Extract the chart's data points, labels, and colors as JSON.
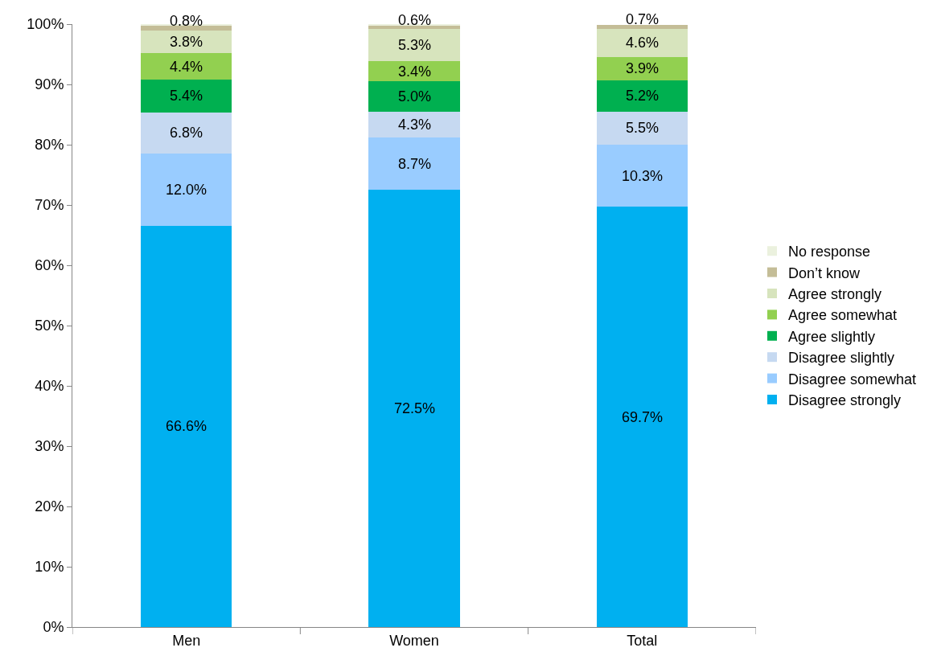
{
  "chart_data": {
    "type": "bar",
    "stacked": true,
    "categories": [
      "Men",
      "Women",
      "Total"
    ],
    "ylim": [
      0,
      100
    ],
    "yticks": [
      {
        "value": 0,
        "label": "0%"
      },
      {
        "value": 10,
        "label": "10%"
      },
      {
        "value": 20,
        "label": "20%"
      },
      {
        "value": 30,
        "label": "30%"
      },
      {
        "value": 40,
        "label": "40%"
      },
      {
        "value": 50,
        "label": "50%"
      },
      {
        "value": 60,
        "label": "60%"
      },
      {
        "value": 70,
        "label": "70%"
      },
      {
        "value": 80,
        "label": "80%"
      },
      {
        "value": 90,
        "label": "90%"
      },
      {
        "value": 100,
        "label": "100%"
      }
    ],
    "grid": false,
    "legend": "right",
    "series": [
      {
        "name": "Disagree strongly",
        "color": "#00b0f0",
        "values": [
          66.6,
          72.5,
          69.7
        ],
        "value_labels": [
          "66.6%",
          "72.5%",
          "69.7%"
        ]
      },
      {
        "name": "Disagree somewhat",
        "color": "#99ccff",
        "values": [
          12.0,
          8.7,
          10.3
        ],
        "value_labels": [
          "12.0%",
          "8.7%",
          "10.3%"
        ]
      },
      {
        "name": "Disagree slightly",
        "color": "#c6d9f1",
        "values": [
          6.8,
          4.3,
          5.5
        ],
        "value_labels": [
          "6.8%",
          "4.3%",
          "5.5%"
        ]
      },
      {
        "name": "Agree slightly",
        "color": "#00b050",
        "values": [
          5.4,
          5.0,
          5.2
        ],
        "value_labels": [
          "5.4%",
          "5.0%",
          "5.2%"
        ]
      },
      {
        "name": "Agree somewhat",
        "color": "#92d050",
        "values": [
          4.4,
          3.4,
          3.9
        ],
        "value_labels": [
          "4.4%",
          "3.4%",
          "3.9%"
        ]
      },
      {
        "name": "Agree strongly",
        "color": "#d7e4bd",
        "values": [
          3.8,
          5.3,
          4.6
        ],
        "value_labels": [
          "3.8%",
          "5.3%",
          "4.6%"
        ]
      },
      {
        "name": "Don’t know",
        "color": "#c4bd97",
        "values": [
          0.8,
          0.6,
          0.7
        ],
        "value_labels": [
          "0.8%",
          "0.6%",
          "0.7%"
        ]
      },
      {
        "name": "No response",
        "color": "#ebf1de",
        "values": [
          0.2,
          0.2,
          null
        ],
        "value_labels": [
          null,
          null,
          null
        ]
      }
    ]
  }
}
